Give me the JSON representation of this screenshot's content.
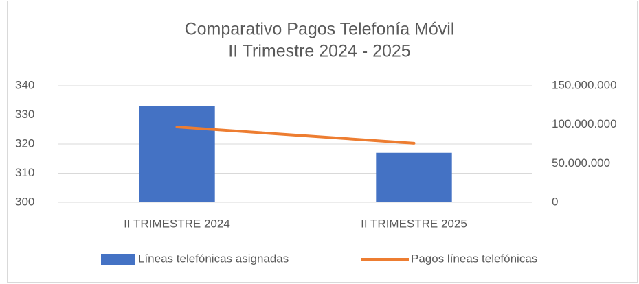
{
  "chart_data": {
    "type": "bar-line",
    "title": [
      "Comparativo Pagos Telefonía Móvil",
      "II Trimestre 2024 - 2025"
    ],
    "categories": [
      "II TRIMESTRE 2024",
      "II TRIMESTRE 2025"
    ],
    "series": [
      {
        "name": "Líneas telefónicas asignadas",
        "type": "bar",
        "color": "#4472c4",
        "values": [
          333,
          317
        ]
      },
      {
        "name": "Pagos líneas telefónicas",
        "type": "line",
        "axis": "y2",
        "color": "#ed7d31",
        "values": [
          97000000,
          76000000
        ]
      }
    ],
    "ylim": [
      300,
      340
    ],
    "yticks": [
      300,
      310,
      320,
      330,
      340
    ],
    "y2lim": [
      0,
      150000000
    ],
    "y2ticks": [
      0,
      {
        "value": 50000000,
        "label": "50.000.000"
      },
      {
        "value": 100000000,
        "label": "100.000.000"
      },
      {
        "value": 150000000,
        "label": "150.000.000"
      }
    ],
    "grid": true,
    "legend": "bottom"
  }
}
